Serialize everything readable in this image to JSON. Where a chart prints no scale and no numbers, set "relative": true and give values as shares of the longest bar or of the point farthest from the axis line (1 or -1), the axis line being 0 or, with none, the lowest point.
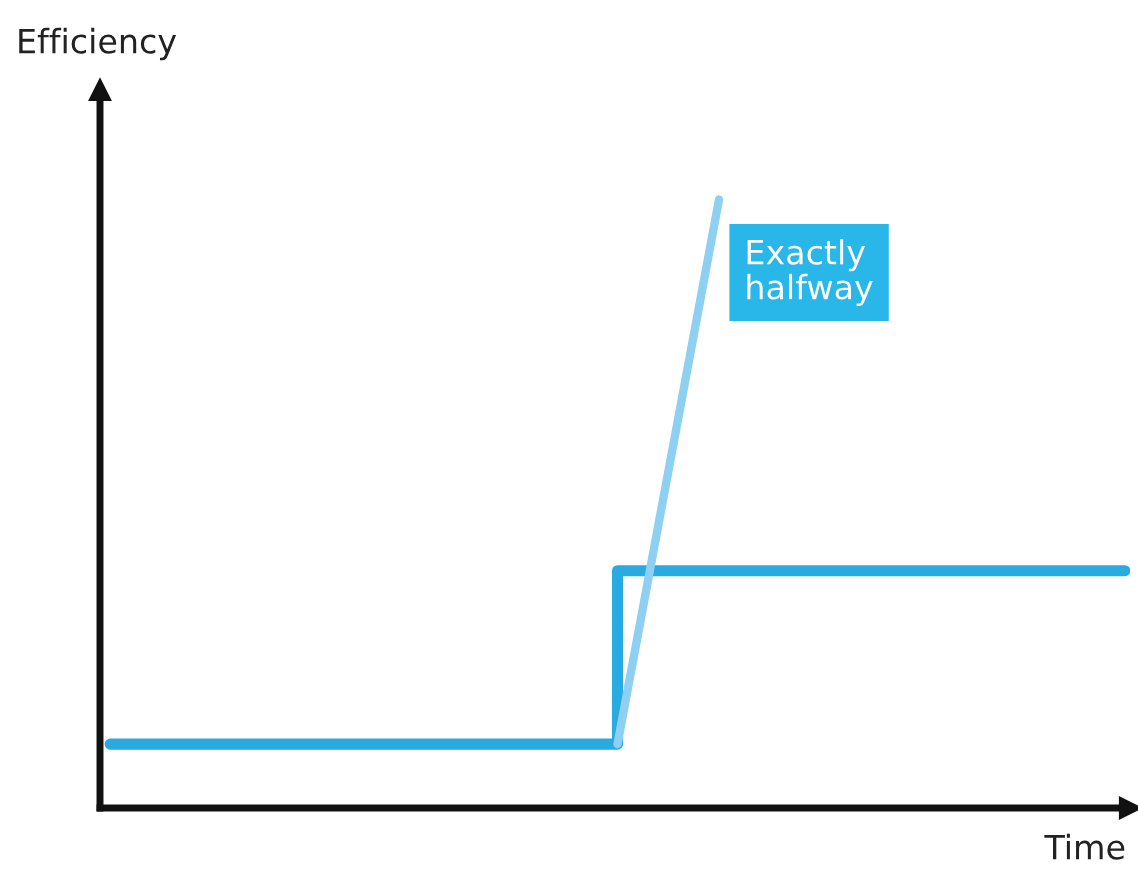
{
  "chart_data": {
    "type": "line",
    "relative": true,
    "xlabel": "Time",
    "ylabel": "Efficiency",
    "categories": [
      null,
      null,
      null,
      null,
      null,
      null,
      null,
      null,
      null,
      null,
      null
    ],
    "series": [
      {
        "type": "step",
        "color": "#29abe2",
        "values": [
          0.105,
          0.105,
          0.105,
          0.105,
          0.105,
          0.39,
          0.39,
          0.39,
          0.39,
          0.39,
          0.39
        ]
      },
      {
        "color": "#8dd0f2",
        "values": [
          null,
          null,
          null,
          null,
          null,
          0.105,
          1.0,
          null,
          null,
          null,
          null
        ]
      }
    ],
    "annotations": [
      "Exactly halfway"
    ],
    "legend": false
  }
}
